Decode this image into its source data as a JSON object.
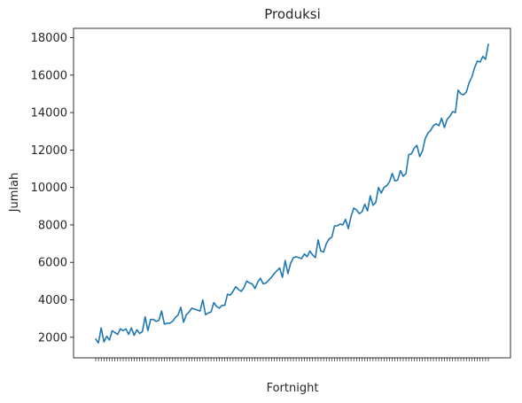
{
  "chart_data": {
    "type": "line",
    "title": "Produksi",
    "xlabel": "Fortnight",
    "ylabel": "Jumlah",
    "ylim": [
      900,
      18500
    ],
    "yticks": [
      "2000",
      "4000",
      "6000",
      "8000",
      "10000",
      "12000",
      "14000",
      "16000",
      "18000"
    ],
    "grid": false,
    "line_color": "#1f77b4",
    "series": [
      {
        "values": [
          1900,
          1700,
          2500,
          1750,
          2050,
          1850,
          2350,
          2250,
          2150,
          2450,
          2350,
          2450,
          2150,
          2500,
          2100,
          2400,
          2200,
          2300,
          3100,
          2350,
          2950,
          2950,
          2850,
          2900,
          3400,
          2700,
          2750,
          2750,
          2850,
          3050,
          3200,
          3600,
          2800,
          3200,
          3350,
          3550,
          3500,
          3450,
          3400,
          4000,
          3200,
          3300,
          3350,
          3850,
          3650,
          3550,
          3700,
          3700,
          4300,
          4250,
          4450,
          4700,
          4550,
          4450,
          4650,
          5000,
          4900,
          4850,
          4600,
          4950,
          5150,
          4850,
          4900,
          5050,
          5200,
          5400,
          5550,
          5700,
          5200,
          6100,
          5400,
          5950,
          6250,
          6300,
          6250,
          6200,
          6450,
          6300,
          6600,
          6400,
          6250,
          7200,
          6600,
          6550,
          7000,
          7250,
          7350,
          7950,
          7950,
          8050,
          8000,
          8300,
          7800,
          8450,
          8900,
          8800,
          8600,
          8700,
          9100,
          8750,
          9550,
          9050,
          9200,
          10000,
          9700,
          10000,
          10100,
          10300,
          10750,
          10350,
          10400,
          10900,
          10600,
          10750,
          11750,
          11800,
          12100,
          12250,
          11650,
          11950,
          12600,
          12900,
          13050,
          13300,
          13400,
          13300,
          13700,
          13200,
          13650,
          13800,
          14050,
          14000,
          15200,
          15000,
          14950,
          15100,
          15600,
          15900,
          16400,
          16750,
          16700,
          17000,
          16850,
          17650
        ]
      }
    ]
  }
}
